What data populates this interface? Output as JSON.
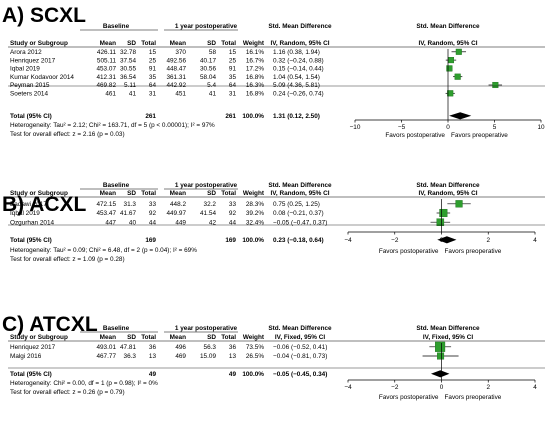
{
  "chart_data": [
    {
      "type": "forest",
      "panel_title": "A) SCXL",
      "group1_label": "Baseline",
      "group2_label": "1 year postoperative",
      "col_headers": {
        "study": "Study or Subgroup",
        "mean1": "Mean",
        "sd1": "SD",
        "total1": "Total",
        "mean2": "Mean",
        "sd2": "SD",
        "total2": "Total",
        "weight": "Weight",
        "effect": "Std. Mean Difference",
        "effect_method": "IV, Random, 95% CI",
        "plot_header": "Std. Mean Difference",
        "plot_method": "IV, Random, 95% CI"
      },
      "studies": [
        {
          "name": "Arora 2012",
          "mean1": "426.11",
          "sd1": "32.78",
          "total1": "15",
          "mean2": "370",
          "sd2": "58",
          "total2": "15",
          "weight": "16.1%",
          "ci": "1.16 (0.38, 1.94)",
          "est": 1.16,
          "lo": 0.38,
          "hi": 1.94,
          "w": 16.1
        },
        {
          "name": "Henriquez 2017",
          "mean1": "505.11",
          "sd1": "37.54",
          "total1": "25",
          "mean2": "492.56",
          "sd2": "40.17",
          "total2": "25",
          "weight": "16.7%",
          "ci": "0.32 (−0.24, 0.88)",
          "est": 0.32,
          "lo": -0.24,
          "hi": 0.88,
          "w": 16.7
        },
        {
          "name": "Iqbal 2019",
          "mean1": "453.07",
          "sd1": "30.55",
          "total1": "91",
          "mean2": "448.47",
          "sd2": "30.56",
          "total2": "91",
          "weight": "17.2%",
          "ci": "0.15 (−0.14, 0.44)",
          "est": 0.15,
          "lo": -0.14,
          "hi": 0.44,
          "w": 17.2
        },
        {
          "name": "Kumar Kodavoor 2014",
          "mean1": "412.31",
          "sd1": "36.54",
          "total1": "35",
          "mean2": "361.31",
          "sd2": "58.04",
          "total2": "35",
          "weight": "16.8%",
          "ci": "1.04 (0.54, 1.54)",
          "est": 1.04,
          "lo": 0.54,
          "hi": 1.54,
          "w": 16.8
        },
        {
          "name": "Peyman 2015",
          "mean1": "469.82",
          "sd1": "5.11",
          "total1": "64",
          "mean2": "442.92",
          "sd2": "5.4",
          "total2": "64",
          "weight": "16.3%",
          "ci": "5.09 (4.36, 5.81)",
          "est": 5.09,
          "lo": 4.36,
          "hi": 5.81,
          "w": 16.3
        },
        {
          "name": "Soeters 2014",
          "mean1": "461",
          "sd1": "41",
          "total1": "31",
          "mean2": "451",
          "sd2": "41",
          "total2": "31",
          "weight": "16.8%",
          "ci": "0.24 (−0.26, 0.74)",
          "est": 0.24,
          "lo": -0.26,
          "hi": 0.74,
          "w": 16.8
        }
      ],
      "total": {
        "name": "Total (95% CI)",
        "total1": "261",
        "total2": "261",
        "weight": "100.0%",
        "ci": "1.31 (0.12, 2.50)",
        "est": 1.31,
        "lo": 0.12,
        "hi": 2.5
      },
      "heterogeneity": "Heterogeneity: Tau² = 2.12; Chi² = 163.71, df = 5 (p < 0.00001); I² = 97%",
      "overall_test": "Test for overall effect: z = 2.16 (p = 0.03)",
      "xlim": [
        -10,
        10
      ],
      "ticks": [
        -10,
        -5,
        0,
        5,
        10
      ],
      "tick_labels": [
        "−10",
        "−5",
        "0",
        "5",
        "10"
      ],
      "favors_left": "Favors postoperative",
      "favors_right": "Favors preoperative",
      "marker_color": "#2e9e2e"
    },
    {
      "type": "forest",
      "panel_title": "B) ACXL",
      "group1_label": "Baseline",
      "group2_label": "1 year postoperative",
      "col_headers": {
        "study": "Study or Subgroup",
        "mean1": "Mean",
        "sd1": "SD",
        "total1": "Total",
        "mean2": "Mean",
        "sd2": "SD",
        "total2": "Total",
        "weight": "Weight",
        "effect": "Std. Mean Difference",
        "effect_method": "IV, Random, 95% CI",
        "plot_header": "Std. Mean Difference",
        "plot_method": "IV, Random, 95% CI"
      },
      "studies": [
        {
          "name": "Badawi 2017",
          "mean1": "472.15",
          "sd1": "31.3",
          "total1": "33",
          "mean2": "448.2",
          "sd2": "32.2",
          "total2": "33",
          "weight": "28.3%",
          "ci": "0.75 (0.25, 1.25)",
          "est": 0.75,
          "lo": 0.25,
          "hi": 1.25,
          "w": 28.3
        },
        {
          "name": "Iqbal 2019",
          "mean1": "453.47",
          "sd1": "41.67",
          "total1": "92",
          "mean2": "449.97",
          "sd2": "41.54",
          "total2": "92",
          "weight": "39.2%",
          "ci": "0.08 (−0.21, 0.37)",
          "est": 0.08,
          "lo": -0.21,
          "hi": 0.37,
          "w": 39.2
        },
        {
          "name": "Ozgurhan 2014",
          "mean1": "447",
          "sd1": "40",
          "total1": "44",
          "mean2": "449",
          "sd2": "42",
          "total2": "44",
          "weight": "32.4%",
          "ci": "−0.05 (−0.47, 0.37)",
          "est": -0.05,
          "lo": -0.47,
          "hi": 0.37,
          "w": 32.4
        }
      ],
      "total": {
        "name": "Total (95% CI)",
        "total1": "169",
        "total2": "169",
        "weight": "100.0%",
        "ci": "0.23 (−0.18, 0.64)",
        "est": 0.23,
        "lo": -0.18,
        "hi": 0.64
      },
      "heterogeneity": "Heterogeneity: Tau² = 0.09; Chi² = 6.48, df = 2 (p = 0.04); I² = 69%",
      "overall_test": "Test for overall effect: z = 1.09 (p = 0.28)",
      "xlim": [
        -4,
        4
      ],
      "ticks": [
        -4,
        -2,
        0,
        2,
        4
      ],
      "tick_labels": [
        "−4",
        "−2",
        "0",
        "2",
        "4"
      ],
      "favors_left": "Favors postoperative",
      "favors_right": "Favors preoperative",
      "marker_color": "#2e9e2e"
    },
    {
      "type": "forest",
      "panel_title": "C) ATCXL",
      "group1_label": "Baseline",
      "group2_label": "1 year postoperative",
      "col_headers": {
        "study": "Study or Subgroup",
        "mean1": "Mean",
        "sd1": "SD",
        "total1": "Total",
        "mean2": "Mean",
        "sd2": "SD",
        "total2": "Total",
        "weight": "Weight",
        "effect": "Std. Mean Difference",
        "effect_method": "IV, Fixed, 95% CI",
        "plot_header": "Std. Mean Difference",
        "plot_method": "IV, Fixed, 95% CI"
      },
      "studies": [
        {
          "name": "Henriquez 2017",
          "mean1": "493.01",
          "sd1": "47.81",
          "total1": "36",
          "mean2": "496",
          "sd2": "56.3",
          "total2": "36",
          "weight": "73.5%",
          "ci": "−0.06 (−0.52, 0.41)",
          "est": -0.06,
          "lo": -0.52,
          "hi": 0.41,
          "w": 73.5
        },
        {
          "name": "Malgi 2016",
          "mean1": "467.77",
          "sd1": "36.3",
          "total1": "13",
          "mean2": "469",
          "sd2": "15.09",
          "total2": "13",
          "weight": "26.5%",
          "ci": "−0.04 (−0.81, 0.73)",
          "est": -0.04,
          "lo": -0.81,
          "hi": 0.73,
          "w": 26.5
        }
      ],
      "total": {
        "name": "Total (95% CI)",
        "total1": "49",
        "total2": "49",
        "weight": "100.0%",
        "ci": "−0.05 (−0.45, 0.34)",
        "est": -0.05,
        "lo": -0.45,
        "hi": 0.34
      },
      "heterogeneity": "Heterogeneity: Chi² = 0.00, df = 1 (p = 0.98); I² = 0%",
      "overall_test": "Test for overall effect: z = 0.26 (p = 0.79)",
      "xlim": [
        -4,
        4
      ],
      "ticks": [
        -4,
        -2,
        0,
        2,
        4
      ],
      "tick_labels": [
        "−4",
        "−2",
        "0",
        "2",
        "4"
      ],
      "favors_left": "Favors postoperative",
      "favors_right": "Favors preoperative",
      "marker_color": "#2e9e2e"
    }
  ]
}
